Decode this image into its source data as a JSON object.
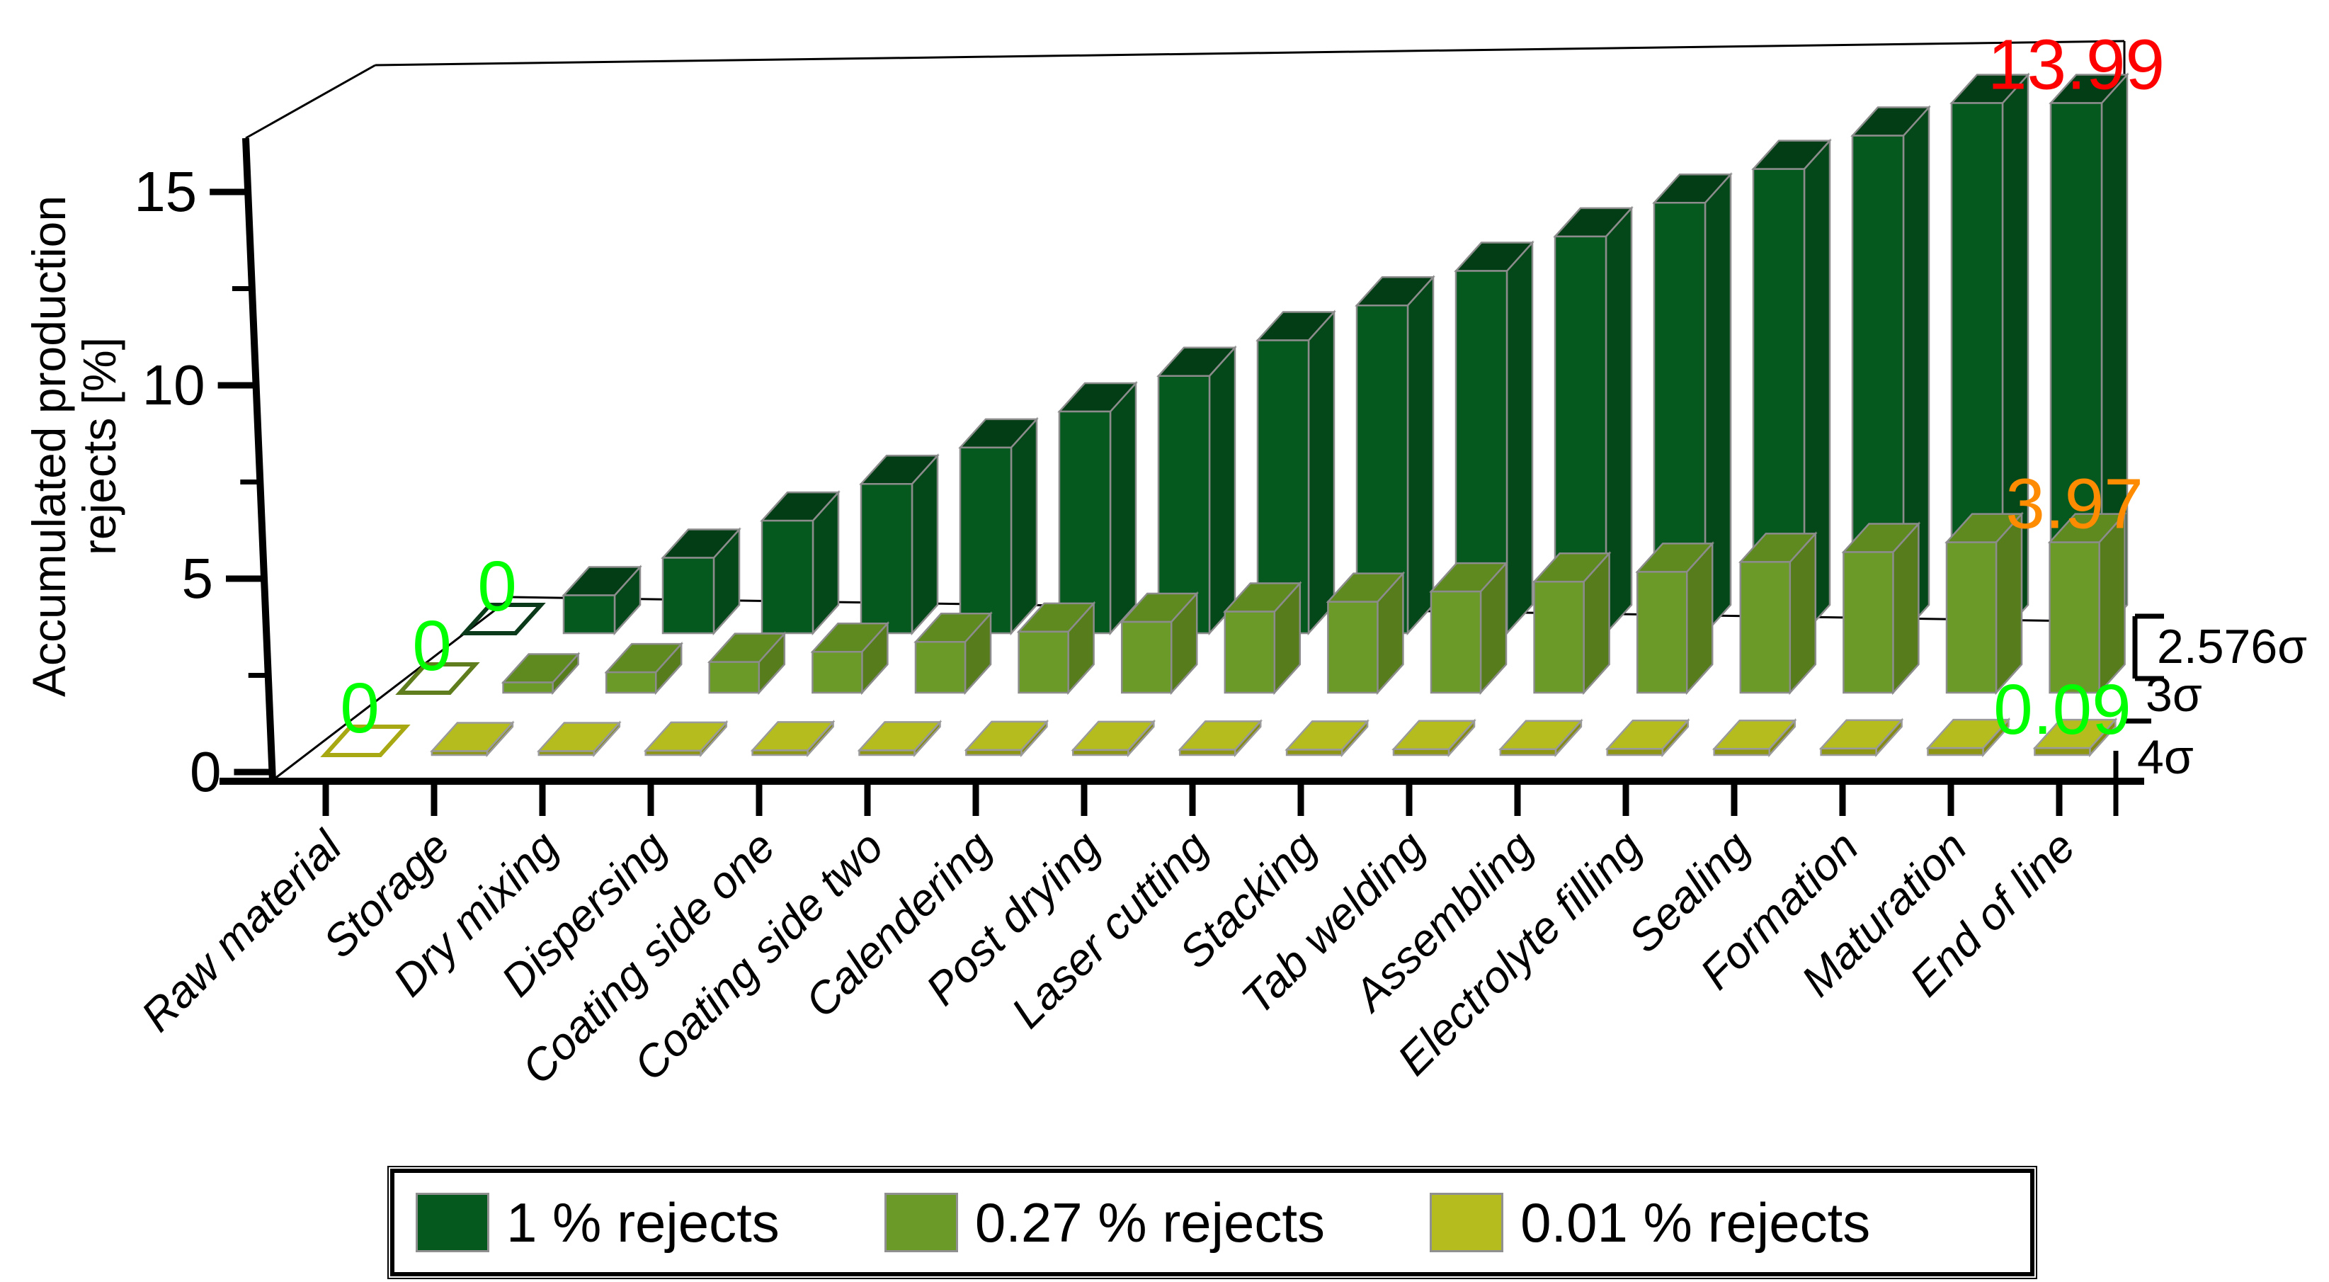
{
  "chart_data": {
    "type": "bar",
    "projection": "3d",
    "title": "",
    "ylabel_lines": [
      "Accumulated production",
      "rejects [%]"
    ],
    "ylim": [
      0,
      15
    ],
    "yticks": [
      0,
      5,
      10,
      15
    ],
    "yminorticks": [
      2.5,
      7.5,
      12.5
    ],
    "grid": "off",
    "legend_position": "bottom",
    "categories": [
      "Raw material",
      "Storage",
      "Dry mixing",
      "Dispersing",
      "Coating side one",
      "Coating side two",
      "Calendering",
      "Post drying",
      "Laser cutting",
      "Stacking",
      "Tab welding",
      "Assembling",
      "Electrolyte filling",
      "Sealing",
      "Formation",
      "Maturation",
      "End of line"
    ],
    "series": [
      {
        "name": "1 % rejects",
        "sigma_label": "2.576σ",
        "depth_row": "back",
        "colors": {
          "front": "#05591F",
          "top": "#033D15",
          "side": "#04481A",
          "stroke": "#8C8C8C",
          "zero_outline": "#0B3A1A"
        },
        "values": [
          0,
          1.0,
          1.99,
          2.97,
          3.94,
          4.9,
          5.85,
          6.79,
          7.73,
          8.65,
          9.56,
          10.47,
          11.36,
          12.25,
          13.13,
          13.99,
          13.99
        ],
        "end_label": {
          "text": "13.99",
          "color": "#FF0000"
        },
        "zero_label": {
          "text": "0",
          "color": "#00FF00"
        }
      },
      {
        "name": "0.27 % rejects",
        "sigma_label": "3σ",
        "depth_row": "middle",
        "colors": {
          "front": "#6B9A28",
          "top": "#5E8A20",
          "side": "#567C1C",
          "stroke": "#8C8C8C",
          "zero_outline": "#5F7D1C"
        },
        "values": [
          0,
          0.27,
          0.54,
          0.81,
          1.08,
          1.34,
          1.61,
          1.87,
          2.14,
          2.4,
          2.67,
          2.93,
          3.19,
          3.45,
          3.71,
          3.97,
          3.97
        ],
        "end_label": {
          "text": "3.97",
          "color": "#FF8C00"
        },
        "zero_label": {
          "text": "0",
          "color": "#00FF00"
        }
      },
      {
        "name": "0.01 % rejects",
        "sigma_label": "4σ",
        "depth_row": "front",
        "colors": {
          "front": "#8F9614",
          "top": "#B5BD1E",
          "side": "#848A12",
          "stroke": "#9A9A9A",
          "zero_outline": "#A8A812"
        },
        "values": [
          0,
          0.01,
          0.01,
          0.02,
          0.03,
          0.03,
          0.04,
          0.04,
          0.05,
          0.05,
          0.06,
          0.06,
          0.07,
          0.07,
          0.08,
          0.09,
          0.09
        ],
        "end_label": {
          "text": "0.09",
          "color": "#00FF00"
        },
        "zero_label": {
          "text": "0",
          "color": "#00FF00"
        }
      }
    ]
  },
  "legend": {
    "entries": [
      {
        "label": "1 % rejects",
        "color": "#05591F"
      },
      {
        "label": "0.27 % rejects",
        "color": "#6B9A28"
      },
      {
        "label": "0.01 % rejects",
        "color": "#B5BD1E"
      }
    ]
  }
}
